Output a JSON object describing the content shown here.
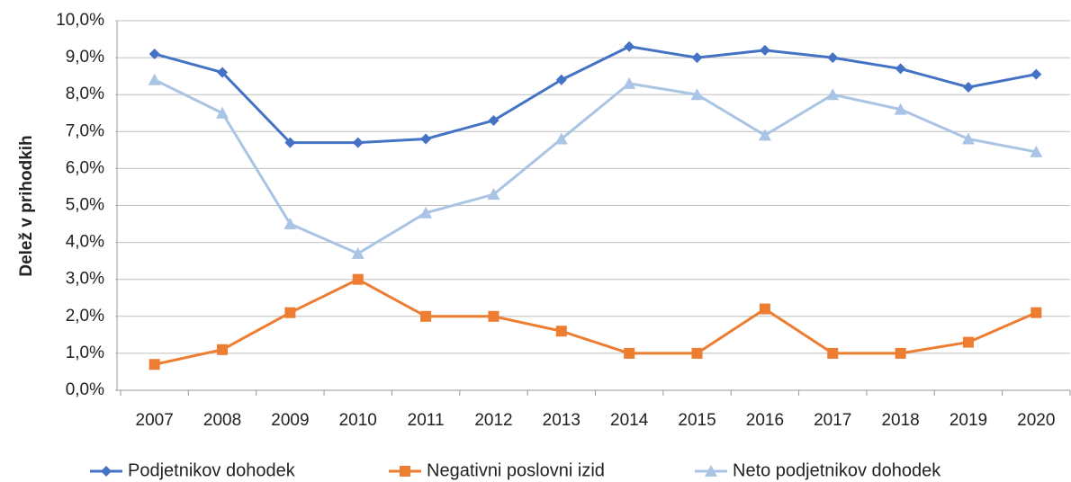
{
  "chart_data": {
    "type": "line",
    "y_label": "Delež v prihodkih",
    "categories": [
      "2007",
      "2008",
      "2009",
      "2010",
      "2011",
      "2012",
      "2013",
      "2014",
      "2015",
      "2016",
      "2017",
      "2018",
      "2019",
      "2020"
    ],
    "series": [
      {
        "name": "Podjetnikov dohodek",
        "color": "#4472c4",
        "marker": "diamond",
        "values": [
          9.1,
          8.6,
          6.7,
          6.7,
          6.8,
          7.3,
          8.4,
          9.3,
          9.0,
          9.2,
          9.0,
          8.7,
          8.2,
          8.55
        ]
      },
      {
        "name": "Negativni poslovni izid",
        "color": "#ed7d31",
        "marker": "square",
        "values": [
          0.7,
          1.1,
          2.1,
          3.0,
          2.0,
          2.0,
          1.6,
          1.0,
          1.0,
          2.2,
          1.0,
          1.0,
          1.3,
          2.1
        ]
      },
      {
        "name": "Neto podjetnikov dohodek",
        "color": "#a9c4e4",
        "marker": "triangle",
        "values": [
          8.4,
          7.5,
          4.5,
          3.7,
          4.8,
          5.3,
          6.8,
          8.3,
          8.0,
          6.9,
          8.0,
          7.6,
          6.8,
          6.45
        ]
      }
    ],
    "ylim": [
      0,
      10
    ],
    "yticks": [
      {
        "value": 0,
        "label": "0,0%"
      },
      {
        "value": 1,
        "label": "1,0%"
      },
      {
        "value": 2,
        "label": "2,0%"
      },
      {
        "value": 3,
        "label": "3,0%"
      },
      {
        "value": 4,
        "label": "4,0%"
      },
      {
        "value": 5,
        "label": "5,0%"
      },
      {
        "value": 6,
        "label": "6,0%"
      },
      {
        "value": 7,
        "label": "7,0%"
      },
      {
        "value": 8,
        "label": "8,0%"
      },
      {
        "value": 9,
        "label": "9,0%"
      },
      {
        "value": 10,
        "label": "10,0%"
      }
    ],
    "grid": true,
    "legend": "bottom"
  }
}
